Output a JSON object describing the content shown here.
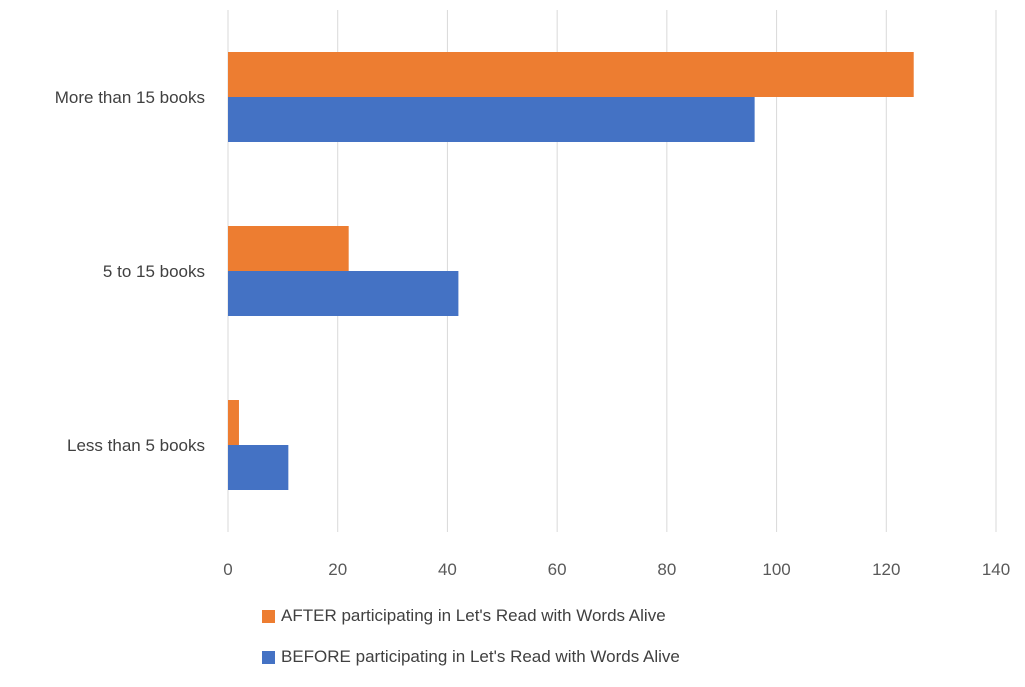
{
  "chart_data": {
    "type": "bar",
    "orientation": "horizontal",
    "categories": [
      "More than 15 books",
      "5 to 15 books",
      "Less than 5 books"
    ],
    "series": [
      {
        "name": "AFTER participating in Let's Read with Words Alive",
        "color": "#ED7D31",
        "values": [
          125,
          22,
          2
        ]
      },
      {
        "name": "BEFORE participating in Let's Read with Words Alive",
        "color": "#4472C4",
        "values": [
          96,
          42,
          11
        ]
      }
    ],
    "xlim": [
      0,
      140
    ],
    "xticks": [
      0,
      20,
      40,
      60,
      80,
      100,
      120,
      140
    ],
    "grid": true,
    "legend_position": "bottom",
    "title": "",
    "xlabel": "",
    "ylabel": ""
  }
}
